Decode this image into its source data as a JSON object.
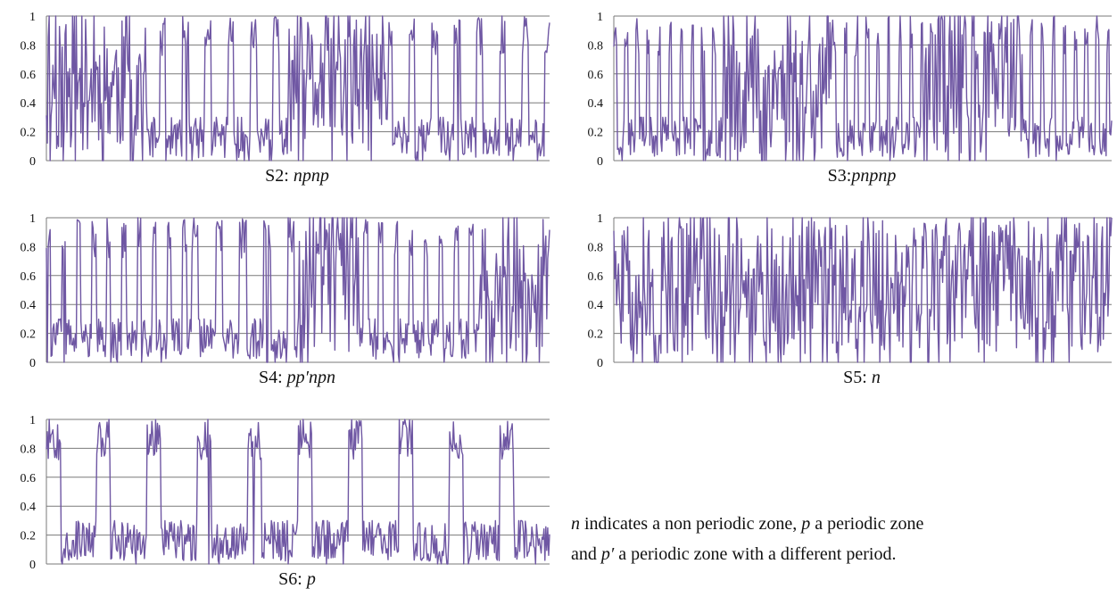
{
  "series_color": "#6f57a3",
  "grid_color": "#7a7a7a",
  "chart_data": [
    {
      "id": "S2",
      "type": "line",
      "caption": {
        "label": "S2:",
        "code": "npnp"
      },
      "ylim": [
        0,
        1
      ],
      "yticks": [
        "0",
        "0.2",
        "0.4",
        "0.6",
        "0.8",
        "1"
      ],
      "grid": true,
      "xlabel": "",
      "ylabel": "",
      "zones": [
        {
          "zone": "n",
          "from": 0,
          "to": 0.2
        },
        {
          "zone": "p",
          "from": 0.2,
          "to": 0.48
        },
        {
          "zone": "n",
          "from": 0.48,
          "to": 0.68
        },
        {
          "zone": "p",
          "from": 0.68,
          "to": 1.0
        }
      ],
      "period": 0.045,
      "n_points": 540,
      "seed": 11
    },
    {
      "id": "S3",
      "type": "line",
      "caption": {
        "label": "S3:",
        "code": "pnpnp"
      },
      "ylim": [
        0,
        1
      ],
      "yticks": [
        "0",
        "0.2",
        "0.4",
        "0.6",
        "0.8",
        "1"
      ],
      "grid": true,
      "xlabel": "",
      "ylabel": "",
      "zones": [
        {
          "zone": "p",
          "from": 0,
          "to": 0.22
        },
        {
          "zone": "n",
          "from": 0.22,
          "to": 0.44
        },
        {
          "zone": "p",
          "from": 0.44,
          "to": 0.62
        },
        {
          "zone": "n",
          "from": 0.62,
          "to": 0.82
        },
        {
          "zone": "p",
          "from": 0.82,
          "to": 1.0
        }
      ],
      "period": 0.022,
      "n_points": 540,
      "seed": 23
    },
    {
      "id": "S4",
      "type": "line",
      "caption": {
        "label": "S4:",
        "code": "pp′npn"
      },
      "ylim": [
        0,
        1
      ],
      "yticks": [
        "0",
        "0.2",
        "0.4",
        "0.6",
        "0.8",
        "1"
      ],
      "grid": true,
      "xlabel": "",
      "ylabel": "",
      "zones": [
        {
          "zone": "p",
          "from": 0,
          "to": 0.28
        },
        {
          "zone": "p'",
          "from": 0.28,
          "to": 0.5
        },
        {
          "zone": "n",
          "from": 0.5,
          "to": 0.62
        },
        {
          "zone": "p",
          "from": 0.62,
          "to": 0.86
        },
        {
          "zone": "n",
          "from": 0.86,
          "to": 1.0
        }
      ],
      "period": 0.03,
      "n_points": 540,
      "seed": 37
    },
    {
      "id": "S5",
      "type": "line",
      "caption": {
        "label": "S5:",
        "code": "n"
      },
      "ylim": [
        0,
        1
      ],
      "yticks": [
        "0",
        "0.2",
        "0.4",
        "0.6",
        "0.8",
        "1"
      ],
      "grid": true,
      "xlabel": "",
      "ylabel": "",
      "zones": [
        {
          "zone": "n",
          "from": 0,
          "to": 1.0
        }
      ],
      "period": 0.03,
      "n_points": 540,
      "seed": 51
    },
    {
      "id": "S6",
      "type": "line",
      "caption": {
        "label": "S6:",
        "code": "p"
      },
      "ylim": [
        0,
        1
      ],
      "yticks": [
        "0",
        "0.2",
        "0.4",
        "0.6",
        "0.8",
        "1"
      ],
      "grid": true,
      "xlabel": "",
      "ylabel": "",
      "zones": [
        {
          "zone": "p",
          "from": 0,
          "to": 1.0
        }
      ],
      "period": 0.1,
      "n_points": 540,
      "seed": 67
    }
  ],
  "note": {
    "line1_pre": "n",
    "line1_mid1": " indicates a non periodic zone, ",
    "line1_p": "p",
    "line1_end": " a periodic zone",
    "line2_pre": "and ",
    "line2_p": "p′",
    "line2_end": " a periodic zone with a different period."
  }
}
